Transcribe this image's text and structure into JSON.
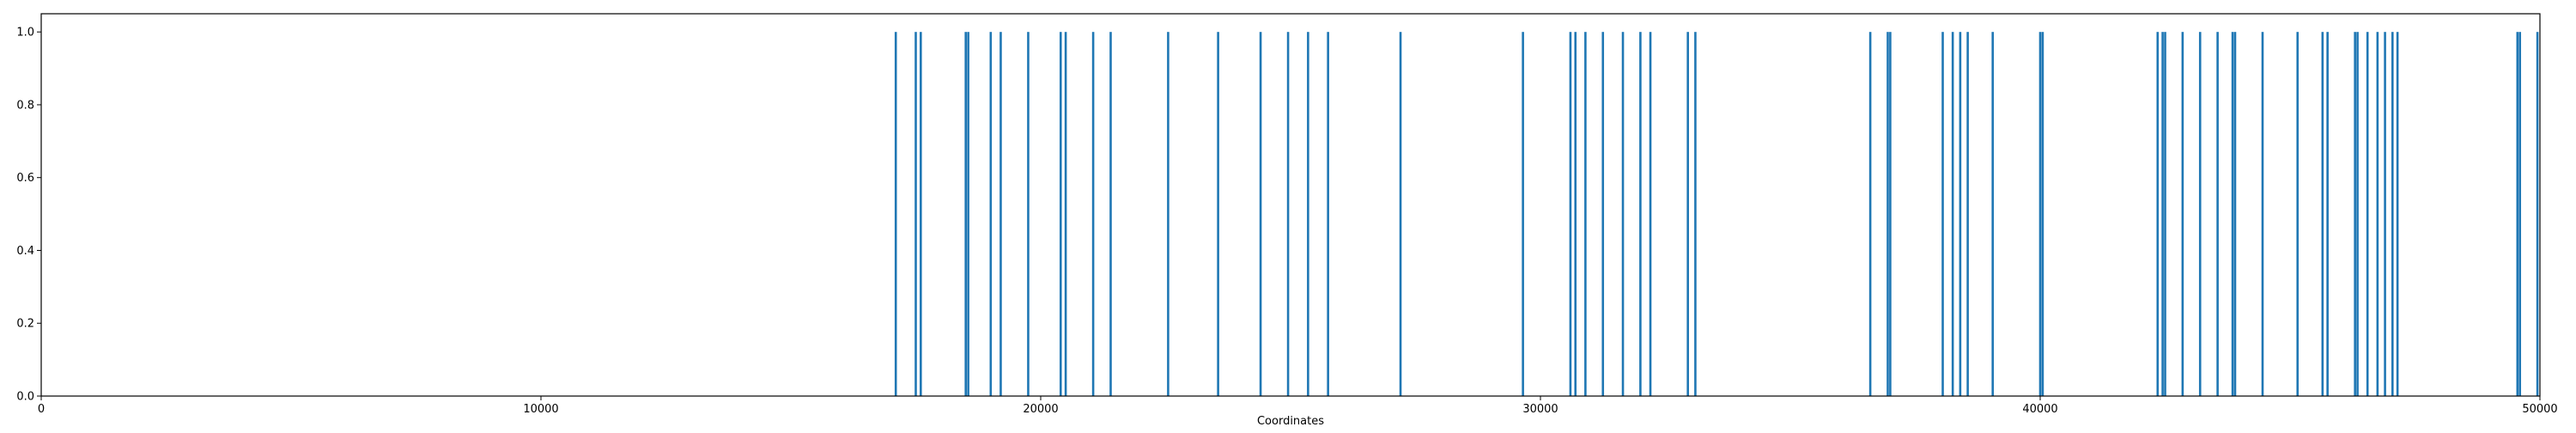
{
  "chart_data": {
    "type": "bar",
    "title": "",
    "xlabel": "Coordinates",
    "ylabel": "",
    "xlim": [
      0,
      50000
    ],
    "ylim": [
      0,
      1.05
    ],
    "grid": false,
    "bar_color": "#1f77b4",
    "xticks": [
      0,
      10000,
      20000,
      30000,
      40000,
      50000
    ],
    "xtick_labels": [
      "0",
      "10000",
      "20000",
      "30000",
      "40000",
      "50000"
    ],
    "yticks": [
      0,
      0.2,
      0.4,
      0.6,
      0.8,
      1.0
    ],
    "ytick_labels": [
      "0.0",
      "0.2",
      "0.4",
      "0.6",
      "0.8",
      "1.0"
    ],
    "x": [
      17100,
      17500,
      17600,
      18500,
      18550,
      19000,
      19200,
      19750,
      20400,
      20500,
      21050,
      21400,
      22550,
      23550,
      24400,
      24950,
      25350,
      25750,
      27200,
      29650,
      30600,
      30700,
      30900,
      31250,
      31650,
      32000,
      32200,
      32950,
      33100,
      36600,
      36950,
      37000,
      38050,
      38250,
      38400,
      38550,
      39050,
      40000,
      40050,
      42350,
      42450,
      42500,
      42850,
      43200,
      43550,
      43850,
      43900,
      44450,
      45150,
      45650,
      45750,
      46300,
      46350,
      46550,
      46750,
      46900,
      47050,
      47150,
      49550,
      49600,
      49950
    ],
    "values": [
      1,
      1,
      1,
      1,
      1,
      1,
      1,
      1,
      1,
      1,
      1,
      1,
      1,
      1,
      1,
      1,
      1,
      1,
      1,
      1,
      1,
      1,
      1,
      1,
      1,
      1,
      1,
      1,
      1,
      1,
      1,
      1,
      1,
      1,
      1,
      1,
      1,
      1,
      1,
      1,
      1,
      1,
      1,
      1,
      1,
      1,
      1,
      1,
      1,
      1,
      1,
      1,
      1,
      1,
      1,
      1,
      1,
      1,
      1,
      1,
      1
    ]
  }
}
